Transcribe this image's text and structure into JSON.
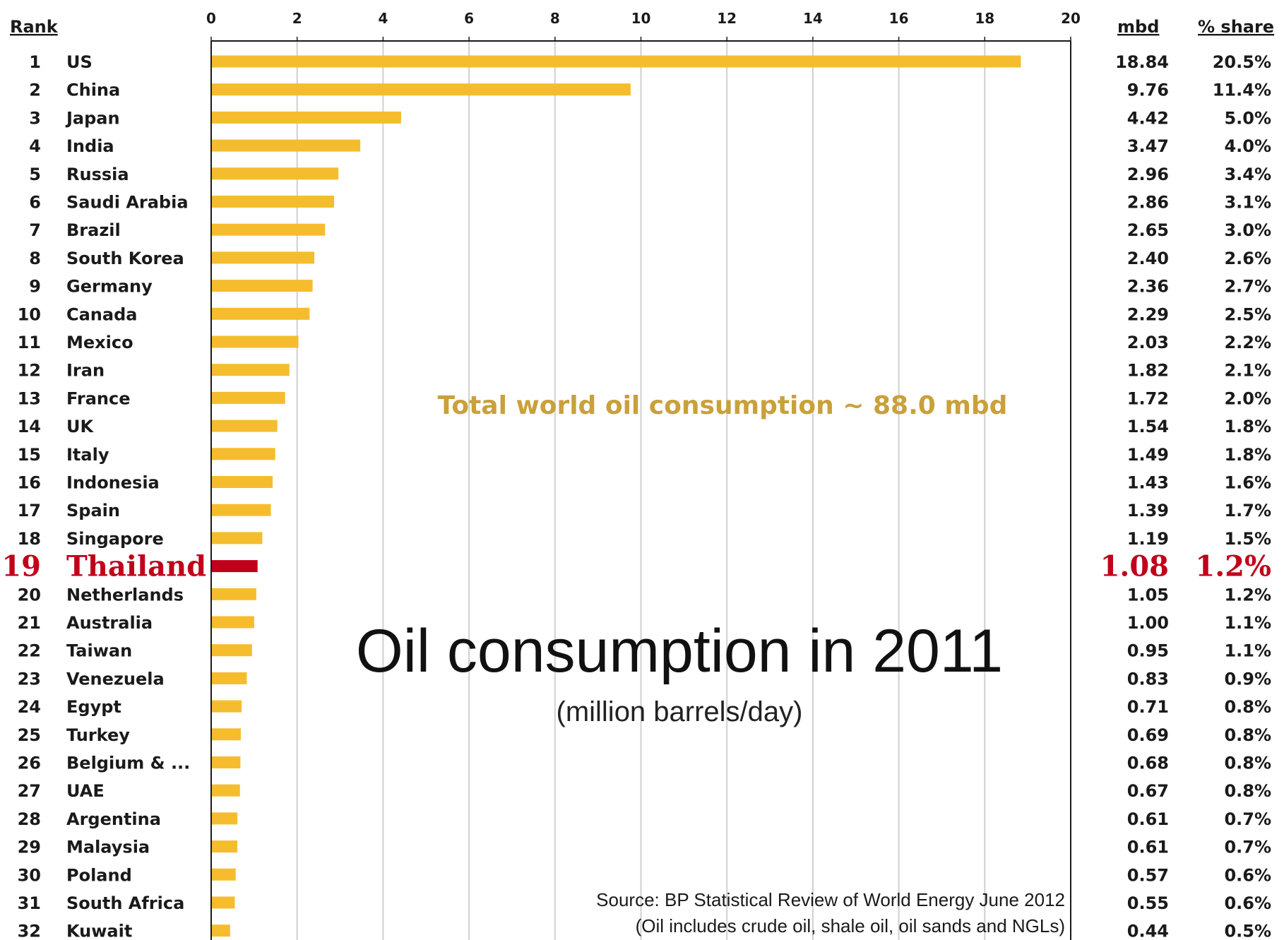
{
  "chart_data": {
    "type": "bar",
    "orientation": "horizontal",
    "title": "Oil consumption in 2011",
    "subtitle": "(million barrels/day)",
    "annotation": "Total world oil consumption  ~ 88.0 mbd",
    "source_line1": "Source:  BP Statistical Review of World Energy June 2012",
    "source_line2": "(Oil includes crude oil, shale oil, oil sands and NGLs)",
    "headers": {
      "rank": "Rank",
      "mbd": "mbd",
      "share": "% share"
    },
    "xlim": [
      0,
      20
    ],
    "xticks": [
      0,
      2,
      4,
      6,
      8,
      10,
      12,
      14,
      16,
      18,
      20
    ],
    "grid": true,
    "highlight_index": 18,
    "colors": {
      "bar": "#f5bd2e",
      "highlight": "#c0001a",
      "grid": "#d0d0d0",
      "axis": "#1a1a1a",
      "annotation": "#c9a13a"
    },
    "rows": [
      {
        "rank": "1",
        "country": "US",
        "value": 18.84,
        "mbd": "18.84",
        "share": "20.5%"
      },
      {
        "rank": "2",
        "country": "China",
        "value": 9.76,
        "mbd": "9.76",
        "share": "11.4%"
      },
      {
        "rank": "3",
        "country": "Japan",
        "value": 4.42,
        "mbd": "4.42",
        "share": "5.0%"
      },
      {
        "rank": "4",
        "country": "India",
        "value": 3.47,
        "mbd": "3.47",
        "share": "4.0%"
      },
      {
        "rank": "5",
        "country": "Russia",
        "value": 2.96,
        "mbd": "2.96",
        "share": "3.4%"
      },
      {
        "rank": "6",
        "country": "Saudi Arabia",
        "value": 2.86,
        "mbd": "2.86",
        "share": "3.1%"
      },
      {
        "rank": "7",
        "country": "Brazil",
        "value": 2.65,
        "mbd": "2.65",
        "share": "3.0%"
      },
      {
        "rank": "8",
        "country": "South Korea",
        "value": 2.4,
        "mbd": "2.40",
        "share": "2.6%"
      },
      {
        "rank": "9",
        "country": "Germany",
        "value": 2.36,
        "mbd": "2.36",
        "share": "2.7%"
      },
      {
        "rank": "10",
        "country": "Canada",
        "value": 2.29,
        "mbd": "2.29",
        "share": "2.5%"
      },
      {
        "rank": "11",
        "country": "Mexico",
        "value": 2.03,
        "mbd": "2.03",
        "share": "2.2%"
      },
      {
        "rank": "12",
        "country": "Iran",
        "value": 1.82,
        "mbd": "1.82",
        "share": "2.1%"
      },
      {
        "rank": "13",
        "country": "France",
        "value": 1.72,
        "mbd": "1.72",
        "share": "2.0%"
      },
      {
        "rank": "14",
        "country": "UK",
        "value": 1.54,
        "mbd": "1.54",
        "share": "1.8%"
      },
      {
        "rank": "15",
        "country": "Italy",
        "value": 1.49,
        "mbd": "1.49",
        "share": "1.8%"
      },
      {
        "rank": "16",
        "country": "Indonesia",
        "value": 1.43,
        "mbd": "1.43",
        "share": "1.6%"
      },
      {
        "rank": "17",
        "country": "Spain",
        "value": 1.39,
        "mbd": "1.39",
        "share": "1.7%"
      },
      {
        "rank": "18",
        "country": "Singapore",
        "value": 1.19,
        "mbd": "1.19",
        "share": "1.5%"
      },
      {
        "rank": "19",
        "country": "Thailand",
        "value": 1.08,
        "mbd": "1.08",
        "share": "1.2%"
      },
      {
        "rank": "20",
        "country": "Netherlands",
        "value": 1.05,
        "mbd": "1.05",
        "share": "1.2%"
      },
      {
        "rank": "21",
        "country": "Australia",
        "value": 1.0,
        "mbd": "1.00",
        "share": "1.1%"
      },
      {
        "rank": "22",
        "country": "Taiwan",
        "value": 0.95,
        "mbd": "0.95",
        "share": "1.1%"
      },
      {
        "rank": "23",
        "country": "Venezuela",
        "value": 0.83,
        "mbd": "0.83",
        "share": "0.9%"
      },
      {
        "rank": "24",
        "country": "Egypt",
        "value": 0.71,
        "mbd": "0.71",
        "share": "0.8%"
      },
      {
        "rank": "25",
        "country": "Turkey",
        "value": 0.69,
        "mbd": "0.69",
        "share": "0.8%"
      },
      {
        "rank": "26",
        "country": "Belgium & ...",
        "value": 0.68,
        "mbd": "0.68",
        "share": "0.8%"
      },
      {
        "rank": "27",
        "country": "UAE",
        "value": 0.67,
        "mbd": "0.67",
        "share": "0.8%"
      },
      {
        "rank": "28",
        "country": "Argentina",
        "value": 0.61,
        "mbd": "0.61",
        "share": "0.7%"
      },
      {
        "rank": "29",
        "country": "Malaysia",
        "value": 0.61,
        "mbd": "0.61",
        "share": "0.7%"
      },
      {
        "rank": "30",
        "country": "Poland",
        "value": 0.57,
        "mbd": "0.57",
        "share": "0.6%"
      },
      {
        "rank": "31",
        "country": "South Africa",
        "value": 0.55,
        "mbd": "0.55",
        "share": "0.6%"
      },
      {
        "rank": "32",
        "country": "Kuwait",
        "value": 0.44,
        "mbd": "0.44",
        "share": "0.5%"
      }
    ]
  }
}
